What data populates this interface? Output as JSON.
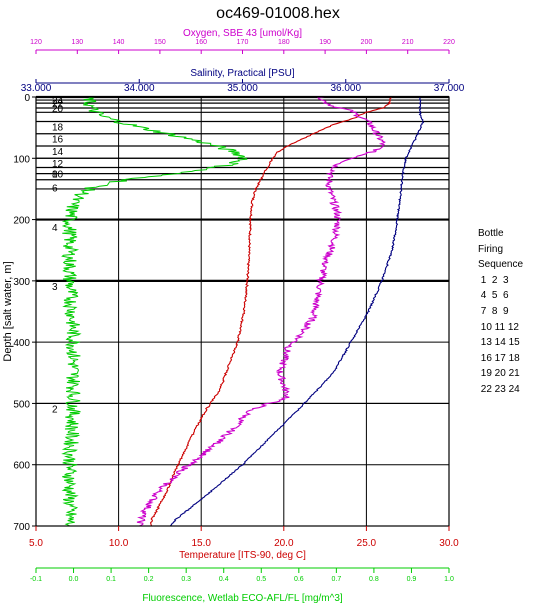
{
  "chart_data": {
    "type": "line",
    "title": "oc469-01008.hex",
    "y_axis": {
      "label": "Depth [salt water, m]",
      "range": [
        0,
        700
      ],
      "ticks": [
        0,
        100,
        200,
        300,
        400,
        500,
        600,
        700
      ],
      "tick_labels": [
        "0",
        "100",
        "200",
        "300",
        "400",
        "500",
        "600",
        "700"
      ],
      "inverted": true
    },
    "top_axes": [
      {
        "key": "oxygen",
        "label": "Oxygen, SBE 43 [umol/Kg]",
        "color": "#cc00cc",
        "range": [
          120,
          220
        ],
        "ticks": [
          120,
          130,
          140,
          150,
          160,
          170,
          180,
          190,
          200,
          210,
          220
        ],
        "tick_labels": [
          "120",
          "130",
          "140",
          "150",
          "160",
          "170",
          "180",
          "190",
          "200",
          "210",
          "220"
        ]
      },
      {
        "key": "salinity",
        "label": "Salinity, Practical [PSU]",
        "color": "#000080",
        "range": [
          33,
          37
        ],
        "ticks": [
          33,
          34,
          35,
          36,
          37
        ],
        "tick_labels": [
          "33.000",
          "34.000",
          "35.000",
          "36.000",
          "37.000"
        ]
      }
    ],
    "bottom_axes": [
      {
        "key": "temperature",
        "label": "Temperature [ITS-90, deg C]",
        "color": "#cc0000",
        "range": [
          5,
          30
        ],
        "ticks": [
          5,
          10,
          15,
          20,
          25,
          30
        ],
        "tick_labels": [
          "5.0",
          "10.0",
          "15.0",
          "20.0",
          "25.0",
          "30.0"
        ]
      },
      {
        "key": "fluorescence",
        "label": "Fluorescence, Wetlab ECO-AFL/FL [mg/m^3]",
        "color": "#00cc00",
        "range": [
          -0.1,
          1.0
        ],
        "ticks": [
          -0.1,
          0.0,
          0.1,
          0.2,
          0.3,
          0.4,
          0.5,
          0.6,
          0.7,
          0.8,
          0.9,
          1.0
        ],
        "tick_labels": [
          "-0.1",
          "0.0",
          "0.1",
          "0.2",
          "0.3",
          "0.4",
          "0.5",
          "0.6",
          "0.7",
          "0.8",
          "0.9",
          "1.0"
        ]
      }
    ],
    "grid": true,
    "series": [
      {
        "key": "temperature",
        "color": "#cc0000",
        "points": [
          [
            0,
            26.5
          ],
          [
            10,
            26.4
          ],
          [
            18,
            26.0
          ],
          [
            25,
            25.0
          ],
          [
            35,
            24.2
          ],
          [
            45,
            23.0
          ],
          [
            60,
            21.8
          ],
          [
            75,
            20.6
          ],
          [
            90,
            19.6
          ],
          [
            110,
            19.1
          ],
          [
            130,
            18.7
          ],
          [
            150,
            18.3
          ],
          [
            170,
            18.1
          ],
          [
            200,
            18.0
          ],
          [
            250,
            17.9
          ],
          [
            300,
            17.8
          ],
          [
            350,
            17.6
          ],
          [
            400,
            17.2
          ],
          [
            450,
            16.5
          ],
          [
            480,
            16.1
          ],
          [
            510,
            15.3
          ],
          [
            550,
            14.5
          ],
          [
            600,
            13.6
          ],
          [
            650,
            12.8
          ],
          [
            690,
            12.0
          ],
          [
            700,
            12.0
          ]
        ]
      },
      {
        "key": "oxygen",
        "color": "#cc00cc",
        "points": [
          [
            0,
            189
          ],
          [
            8,
            190
          ],
          [
            15,
            192
          ],
          [
            22,
            196
          ],
          [
            30,
            198
          ],
          [
            38,
            200
          ],
          [
            45,
            201
          ],
          [
            55,
            202
          ],
          [
            65,
            203
          ],
          [
            75,
            204
          ],
          [
            85,
            203
          ],
          [
            95,
            199
          ],
          [
            110,
            193
          ],
          [
            130,
            191
          ],
          [
            150,
            191
          ],
          [
            170,
            192
          ],
          [
            190,
            193
          ],
          [
            210,
            193
          ],
          [
            240,
            192
          ],
          [
            270,
            190
          ],
          [
            300,
            189
          ],
          [
            330,
            188
          ],
          [
            360,
            187
          ],
          [
            390,
            184
          ],
          [
            410,
            181
          ],
          [
            430,
            180
          ],
          [
            450,
            179
          ],
          [
            470,
            180
          ],
          [
            490,
            181
          ],
          [
            510,
            172
          ],
          [
            540,
            168
          ],
          [
            570,
            163
          ],
          [
            600,
            157
          ],
          [
            640,
            150
          ],
          [
            680,
            146
          ],
          [
            700,
            145
          ]
        ]
      },
      {
        "key": "salinity",
        "color": "#000080",
        "points": [
          [
            0,
            36.72
          ],
          [
            30,
            36.72
          ],
          [
            40,
            36.75
          ],
          [
            60,
            36.7
          ],
          [
            80,
            36.64
          ],
          [
            100,
            36.58
          ],
          [
            130,
            36.55
          ],
          [
            160,
            36.53
          ],
          [
            200,
            36.5
          ],
          [
            250,
            36.45
          ],
          [
            300,
            36.35
          ],
          [
            350,
            36.22
          ],
          [
            400,
            36.05
          ],
          [
            450,
            35.88
          ],
          [
            500,
            35.6
          ],
          [
            550,
            35.3
          ],
          [
            600,
            35.0
          ],
          [
            650,
            34.65
          ],
          [
            690,
            34.35
          ],
          [
            700,
            34.3
          ]
        ]
      },
      {
        "key": "fluorescence",
        "color": "#00cc00",
        "points": [
          [
            0,
            0.04
          ],
          [
            10,
            0.04
          ],
          [
            20,
            0.05
          ],
          [
            30,
            0.07
          ],
          [
            40,
            0.12
          ],
          [
            50,
            0.18
          ],
          [
            60,
            0.25
          ],
          [
            70,
            0.32
          ],
          [
            80,
            0.38
          ],
          [
            90,
            0.43
          ],
          [
            100,
            0.46
          ],
          [
            110,
            0.42
          ],
          [
            120,
            0.33
          ],
          [
            130,
            0.2
          ],
          [
            140,
            0.1
          ],
          [
            150,
            0.04
          ],
          [
            170,
            0.0
          ],
          [
            200,
            -0.01
          ],
          [
            300,
            -0.01
          ],
          [
            400,
            0.0
          ],
          [
            500,
            0.0
          ],
          [
            600,
            -0.01
          ],
          [
            700,
            -0.01
          ]
        ]
      }
    ],
    "bottle_labels": [
      {
        "label": "24",
        "depth": 5
      },
      {
        "label": "22",
        "depth": 10
      },
      {
        "label": "20",
        "depth": 18
      },
      {
        "label": "18",
        "depth": 48
      },
      {
        "label": "16",
        "depth": 68
      },
      {
        "label": "14",
        "depth": 88
      },
      {
        "label": "12",
        "depth": 108
      },
      {
        "label": "10",
        "depth": 125
      },
      {
        "label": "8",
        "depth": 125
      },
      {
        "label": "6",
        "depth": 148
      },
      {
        "label": "4",
        "depth": 212
      },
      {
        "label": "3",
        "depth": 308
      },
      {
        "label": "2",
        "depth": 508
      }
    ],
    "bottle_lines": [
      5,
      10,
      18,
      25,
      40,
      60,
      80,
      100,
      115,
      125,
      135,
      150,
      200,
      300,
      500
    ],
    "legend": {
      "title_lines": [
        "Bottle",
        "Firing",
        "Sequence"
      ],
      "rows": [
        "1  2  3",
        "4  5  6",
        "7  8  9",
        "10 11 12",
        "13 14 15",
        "16 17 18",
        "19 20 21",
        "22 23 24"
      ]
    }
  }
}
